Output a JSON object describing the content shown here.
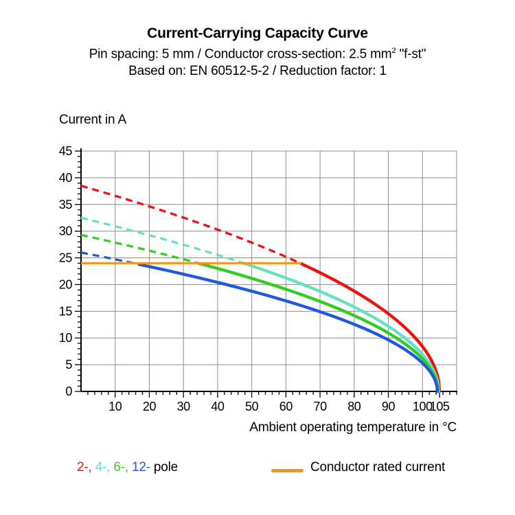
{
  "header": {
    "title": "Current-Carrying Capacity Curve",
    "subtitle1_prefix": "Pin spacing: 5 mm / Conductor cross-section: 2.5 mm",
    "subtitle1_sup": "2",
    "subtitle1_suffix": " \"f-st\"",
    "subtitle2": "Based on: EN 60512-5-2 / Reduction factor: 1"
  },
  "chart_data": {
    "type": "line",
    "title": "Current-Carrying Capacity Curve",
    "xlabel": "Ambient operating temperature in °C",
    "ylabel": "Current in A",
    "xlim": [
      0,
      110
    ],
    "ylim": [
      0,
      45
    ],
    "x_major_ticks": [
      10,
      20,
      30,
      40,
      50,
      60,
      70,
      80,
      90,
      100,
      105
    ],
    "y_major_ticks": [
      0,
      5,
      10,
      15,
      20,
      25,
      30,
      35,
      40,
      45
    ],
    "x_minor_step": 2,
    "y_minor_step": 1,
    "grid": true,
    "grid_color": "#8c8c8c",
    "axis_color": "#000000",
    "x_samples": [
      0,
      10,
      20,
      30,
      40,
      50,
      60,
      70,
      80,
      90,
      100,
      105
    ],
    "series": [
      {
        "name": "2-pole",
        "legend_label": "2-,",
        "color": "#f01010",
        "style": "dashed-then-solid",
        "solid_from_x": 64.5,
        "x_zero": 105,
        "values": [
          38.5,
          36.6,
          34.6,
          32.5,
          30.3,
          27.9,
          25.2,
          22.2,
          18.8,
          14.6,
          8.4,
          0
        ]
      },
      {
        "name": "4-pole",
        "legend_label": "4-,",
        "color": "#68e0c4",
        "style": "dashed-then-solid",
        "solid_from_x": 47.5,
        "x_zero": 104.75,
        "values": [
          32.5,
          30.9,
          29.2,
          27.5,
          25.6,
          23.5,
          21.3,
          18.8,
          15.9,
          12.3,
          7.1,
          0
        ]
      },
      {
        "name": "6-pole",
        "legend_label": "6-,",
        "color": "#33cc22",
        "style": "dashed-then-solid",
        "solid_from_x": 34.5,
        "x_zero": 104.55,
        "values": [
          29.3,
          27.9,
          26.4,
          24.8,
          23.1,
          21.2,
          19.2,
          16.9,
          14.3,
          11.1,
          6.4,
          0
        ]
      },
      {
        "name": "12-pole",
        "legend_label": "12-",
        "color": "#2058e0",
        "style": "dashed-then-solid",
        "solid_from_x": 17,
        "x_zero": 104.35,
        "values": [
          26.0,
          24.7,
          23.4,
          22.0,
          20.5,
          18.8,
          17.0,
          15.0,
          12.7,
          9.8,
          5.7,
          0
        ]
      }
    ],
    "rated_current": {
      "label": "Conductor rated current",
      "color": "#f7941d",
      "value": 24,
      "x_start": 0,
      "x_end": 64.5
    },
    "legend_position": "bottom"
  },
  "legend": {
    "pole_suffix": "pole",
    "rated_label": "Conductor rated current"
  }
}
